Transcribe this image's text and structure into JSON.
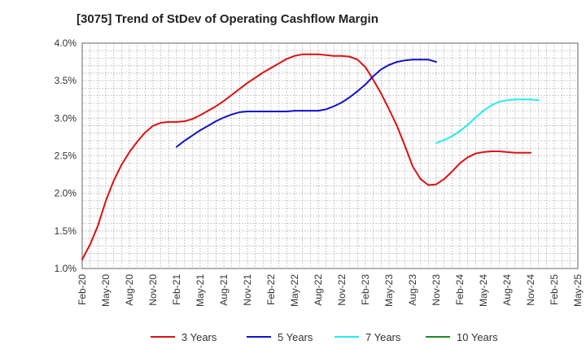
{
  "chart_data": {
    "type": "line",
    "title": "[3075]  Trend of StDev of Operating Cashflow Margin",
    "xlabel": "",
    "ylabel": "",
    "ylim": [
      1.0,
      4.0
    ],
    "yticks": [
      "1.0%",
      "1.5%",
      "2.0%",
      "2.5%",
      "3.0%",
      "3.5%",
      "4.0%"
    ],
    "xticks": [
      "Feb-20",
      "May-20",
      "Aug-20",
      "Nov-20",
      "Feb-21",
      "May-21",
      "Aug-21",
      "Nov-21",
      "Feb-22",
      "May-22",
      "Aug-22",
      "Nov-22",
      "Feb-23",
      "May-23",
      "Aug-23",
      "Nov-23",
      "Feb-24",
      "May-24",
      "Aug-24",
      "Nov-24",
      "Feb-25",
      "May-25"
    ],
    "grid": true,
    "legend_position": "bottom",
    "series": [
      {
        "name": "3 Years",
        "color": "#dd1111",
        "start": "Feb-20",
        "values": [
          1.12,
          1.32,
          1.57,
          1.9,
          2.17,
          2.38,
          2.55,
          2.69,
          2.81,
          2.9,
          2.94,
          2.95,
          2.95,
          2.96,
          2.99,
          3.04,
          3.1,
          3.16,
          3.23,
          3.31,
          3.39,
          3.47,
          3.54,
          3.61,
          3.67,
          3.73,
          3.79,
          3.83,
          3.85,
          3.85,
          3.85,
          3.84,
          3.83,
          3.83,
          3.82,
          3.78,
          3.68,
          3.51,
          3.33,
          3.12,
          2.9,
          2.64,
          2.36,
          2.19,
          2.11,
          2.12,
          2.19,
          2.29,
          2.4,
          2.48,
          2.53,
          2.55,
          2.56,
          2.56,
          2.55,
          2.54,
          2.54,
          2.54
        ]
      },
      {
        "name": "5 Years",
        "color": "#1111cc",
        "start": "Feb-21",
        "values": [
          2.62,
          2.7,
          2.77,
          2.84,
          2.9,
          2.96,
          3.01,
          3.05,
          3.08,
          3.09,
          3.09,
          3.09,
          3.09,
          3.09,
          3.09,
          3.1,
          3.1,
          3.1,
          3.1,
          3.12,
          3.16,
          3.21,
          3.28,
          3.36,
          3.45,
          3.56,
          3.65,
          3.71,
          3.75,
          3.77,
          3.78,
          3.78,
          3.78,
          3.75
        ]
      },
      {
        "name": "7 Years",
        "color": "#22eeee",
        "start": "Nov-23",
        "values": [
          2.67,
          2.71,
          2.76,
          2.83,
          2.91,
          3.01,
          3.1,
          3.17,
          3.22,
          3.24,
          3.25,
          3.25,
          3.25,
          3.24
        ]
      },
      {
        "name": "10 Years",
        "color": "#228822",
        "start": "Feb-20",
        "values": []
      }
    ]
  }
}
